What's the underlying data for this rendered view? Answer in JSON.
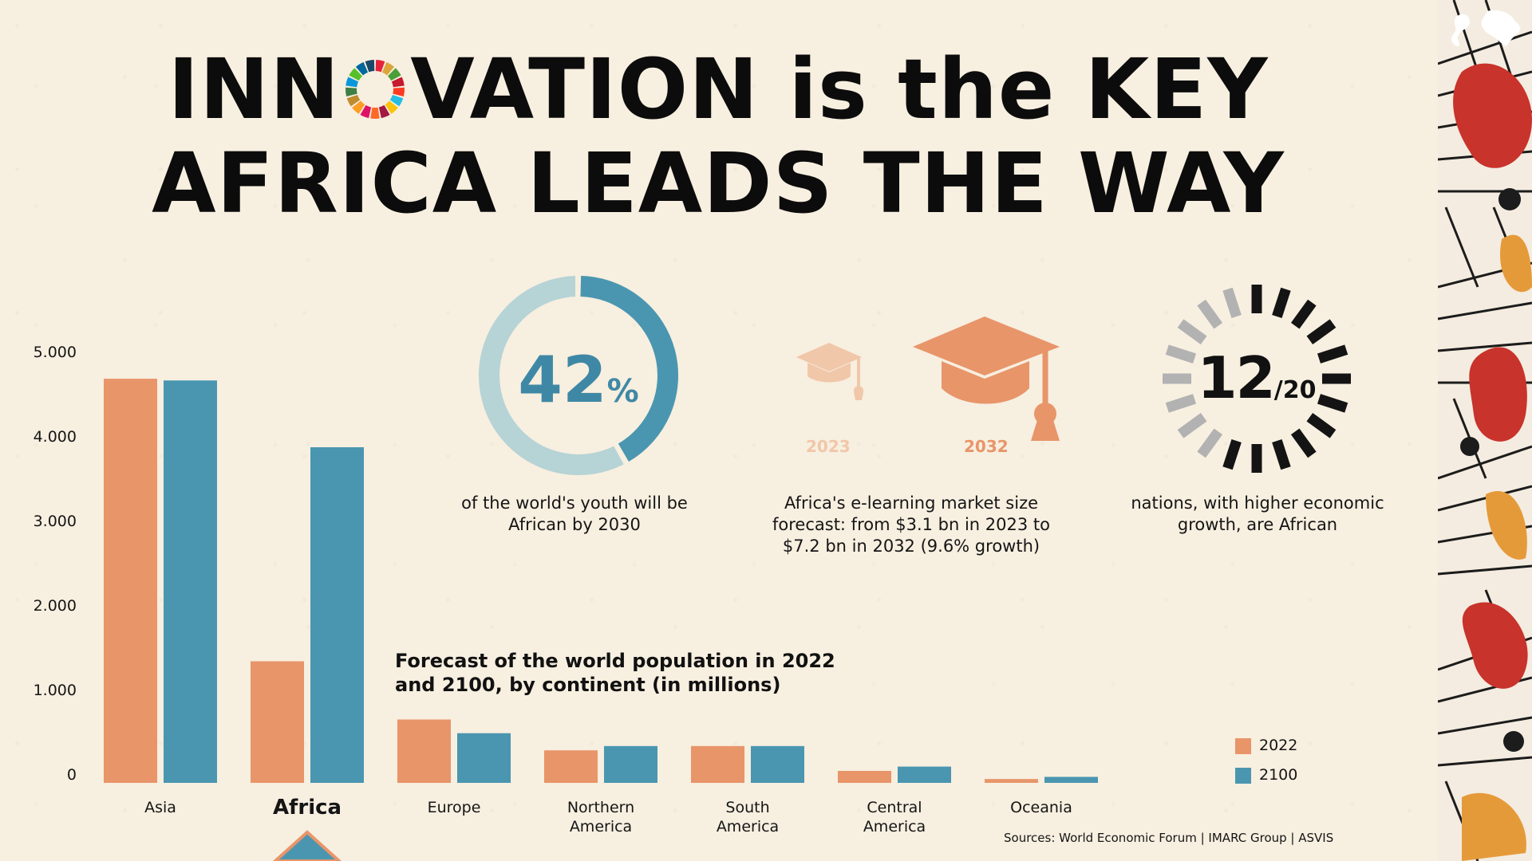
{
  "header": {
    "line1_a": "INN",
    "line1_b": "VATION is the KEY",
    "line2": "AFRICA LEADS THE WAY"
  },
  "stats": {
    "youth": {
      "percent_value": 42,
      "percent_number": "42",
      "percent_sign": "%",
      "caption": "of the world's youth will be African by 2030"
    },
    "elearning": {
      "year_a": "2023",
      "year_b": "2032",
      "caption": "Africa's e-learning market size forecast: from $3.1 bn in 2023 to $7.2 bn in 2032 (9.6% growth)"
    },
    "nations": {
      "count": 12,
      "total": 20,
      "big": "12",
      "small": "/20",
      "caption": "nations, with higher economic growth, are African"
    }
  },
  "colors": {
    "orange": "#e8956a",
    "teal": "#4a96b0",
    "teal_light": "#b6d3d6",
    "dark": "#141414",
    "gray": "#b2b2b2",
    "background": "#f7efe0"
  },
  "icons": {
    "top_right": "africa-map-icon",
    "cap": "graduation-cap-icon"
  },
  "chart_data": {
    "type": "bar",
    "title": "Forecast of the world population in 2022 and 2100, by continent (in millions)",
    "categories": [
      "Asia",
      "Africa",
      "Europe",
      "Northern America",
      "South America",
      "Central America",
      "Oceania"
    ],
    "category_lines": [
      [
        "Asia"
      ],
      [
        "Africa"
      ],
      [
        "Europe"
      ],
      [
        "Northern",
        "America"
      ],
      [
        "South",
        "America"
      ],
      [
        "Central",
        "America"
      ],
      [
        "Oceania"
      ]
    ],
    "highlight_category": "Africa",
    "series": [
      {
        "name": "2022",
        "color": "#e8956a",
        "values": [
          4720,
          1420,
          740,
          380,
          430,
          140,
          45
        ]
      },
      {
        "name": "2100",
        "color": "#4a96b0",
        "values": [
          4700,
          3920,
          580,
          430,
          430,
          190,
          70
        ]
      }
    ],
    "y_ticks": [
      "0",
      "1.000",
      "2.000",
      "3.000",
      "4.000",
      "5.000"
    ],
    "ylim": [
      0,
      5000
    ],
    "legend_position": "bottom-right",
    "grid": false
  },
  "footer": {
    "sources": "Sources: World Economic Forum | IMARC Group | ASVIS"
  }
}
